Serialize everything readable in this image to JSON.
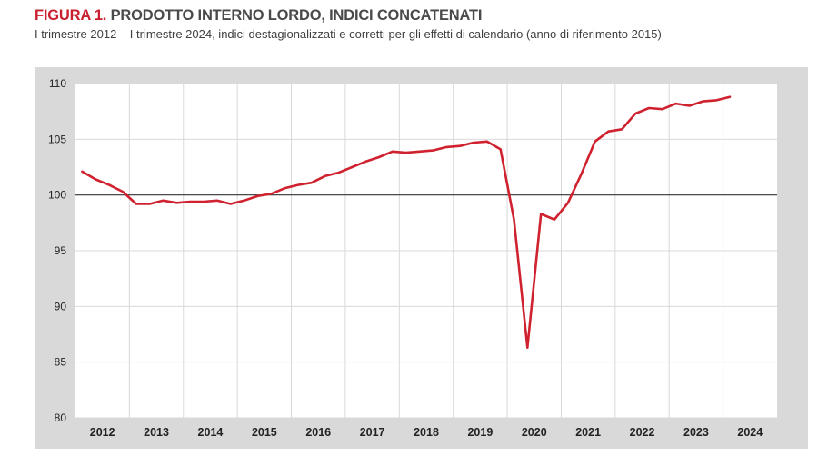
{
  "header": {
    "figure_label": "FIGURA 1.",
    "title": "PRODOTTO INTERNO LORDO, INDICI CONCATENATI",
    "subtitle": "I trimestre 2012 – I trimestre 2024, indici destagionalizzati e corretti per gli effetti di calendario (anno di riferimento 2015)"
  },
  "colors": {
    "series": "#d0212f",
    "panel_background": "#d9d9d9",
    "plot_background": "#ffffff",
    "title_accent": "#c8202f",
    "reference_line": "#333333",
    "grid": "#d9d9d9"
  },
  "chart_data": {
    "type": "line",
    "title": "PRODOTTO INTERNO LORDO, INDICI CONCATENATI",
    "subtitle": "I trimestre 2012 – I trimestre 2024, indici destagionalizzati e corretti per gli effetti di calendario (anno di riferimento 2015)",
    "xlabel": "",
    "ylabel": "",
    "ylim": [
      80,
      110
    ],
    "yticks": [
      80,
      85,
      90,
      95,
      100,
      105,
      110
    ],
    "reference_line": 100,
    "grid": true,
    "legend": "none",
    "x_tick_labels": [
      "2012",
      "2013",
      "2014",
      "2015",
      "2016",
      "2017",
      "2018",
      "2019",
      "2020",
      "2021",
      "2022",
      "2023",
      "2024"
    ],
    "quarters_per_year": 4,
    "series": [
      {
        "values": [
          102.1,
          101.4,
          100.9,
          100.3,
          99.2,
          99.2,
          99.5,
          99.3,
          99.4,
          99.4,
          99.5,
          99.2,
          99.5,
          99.9,
          100.1,
          100.6,
          100.9,
          101.1,
          101.7,
          102.0,
          102.5,
          103.0,
          103.4,
          103.9,
          103.8,
          103.9,
          104.0,
          104.3,
          104.4,
          104.7,
          104.8,
          104.1,
          97.8,
          86.3,
          98.3,
          97.8,
          99.3,
          101.9,
          104.8,
          105.7,
          105.9,
          107.3,
          107.8,
          107.7,
          108.2,
          108.0,
          108.4,
          108.5,
          108.8
        ]
      }
    ]
  }
}
